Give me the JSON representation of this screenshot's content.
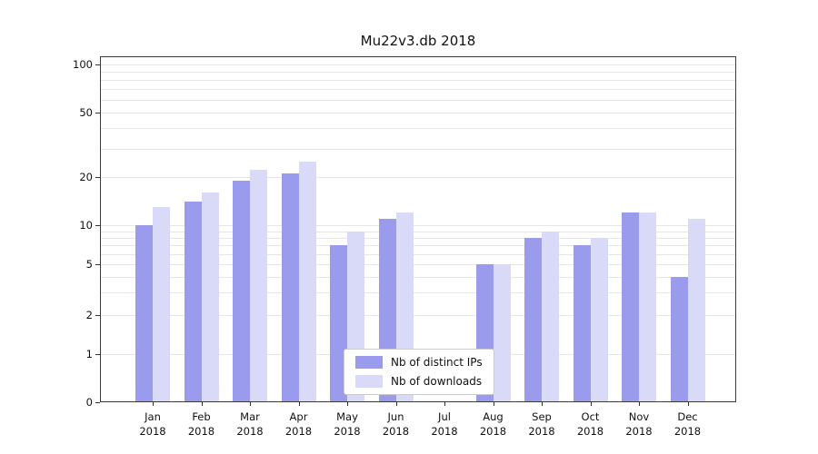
{
  "chart_data": {
    "type": "bar",
    "title": "Mu22v3.db 2018",
    "categories": [
      "Jan",
      "Feb",
      "Mar",
      "Apr",
      "May",
      "Jun",
      "Jul",
      "Aug",
      "Sep",
      "Oct",
      "Nov",
      "Dec"
    ],
    "year": "2018",
    "series": [
      {
        "name": "Nb of distinct IPs",
        "color": "#9b9bee",
        "values": [
          10,
          14,
          19,
          21,
          7,
          11,
          0,
          5,
          8,
          7,
          12,
          4
        ]
      },
      {
        "name": "Nb of downloads",
        "color": "#d9d9f8",
        "values": [
          13,
          16,
          22,
          25,
          9,
          12,
          0,
          5,
          9,
          8,
          12,
          11
        ]
      }
    ],
    "yticks": [
      0,
      1,
      2,
      5,
      10,
      20,
      50,
      100
    ],
    "ylim": [
      0,
      117
    ],
    "yscale": "symlog",
    "grid": "on",
    "legend_position": "bottom-center-inside"
  }
}
